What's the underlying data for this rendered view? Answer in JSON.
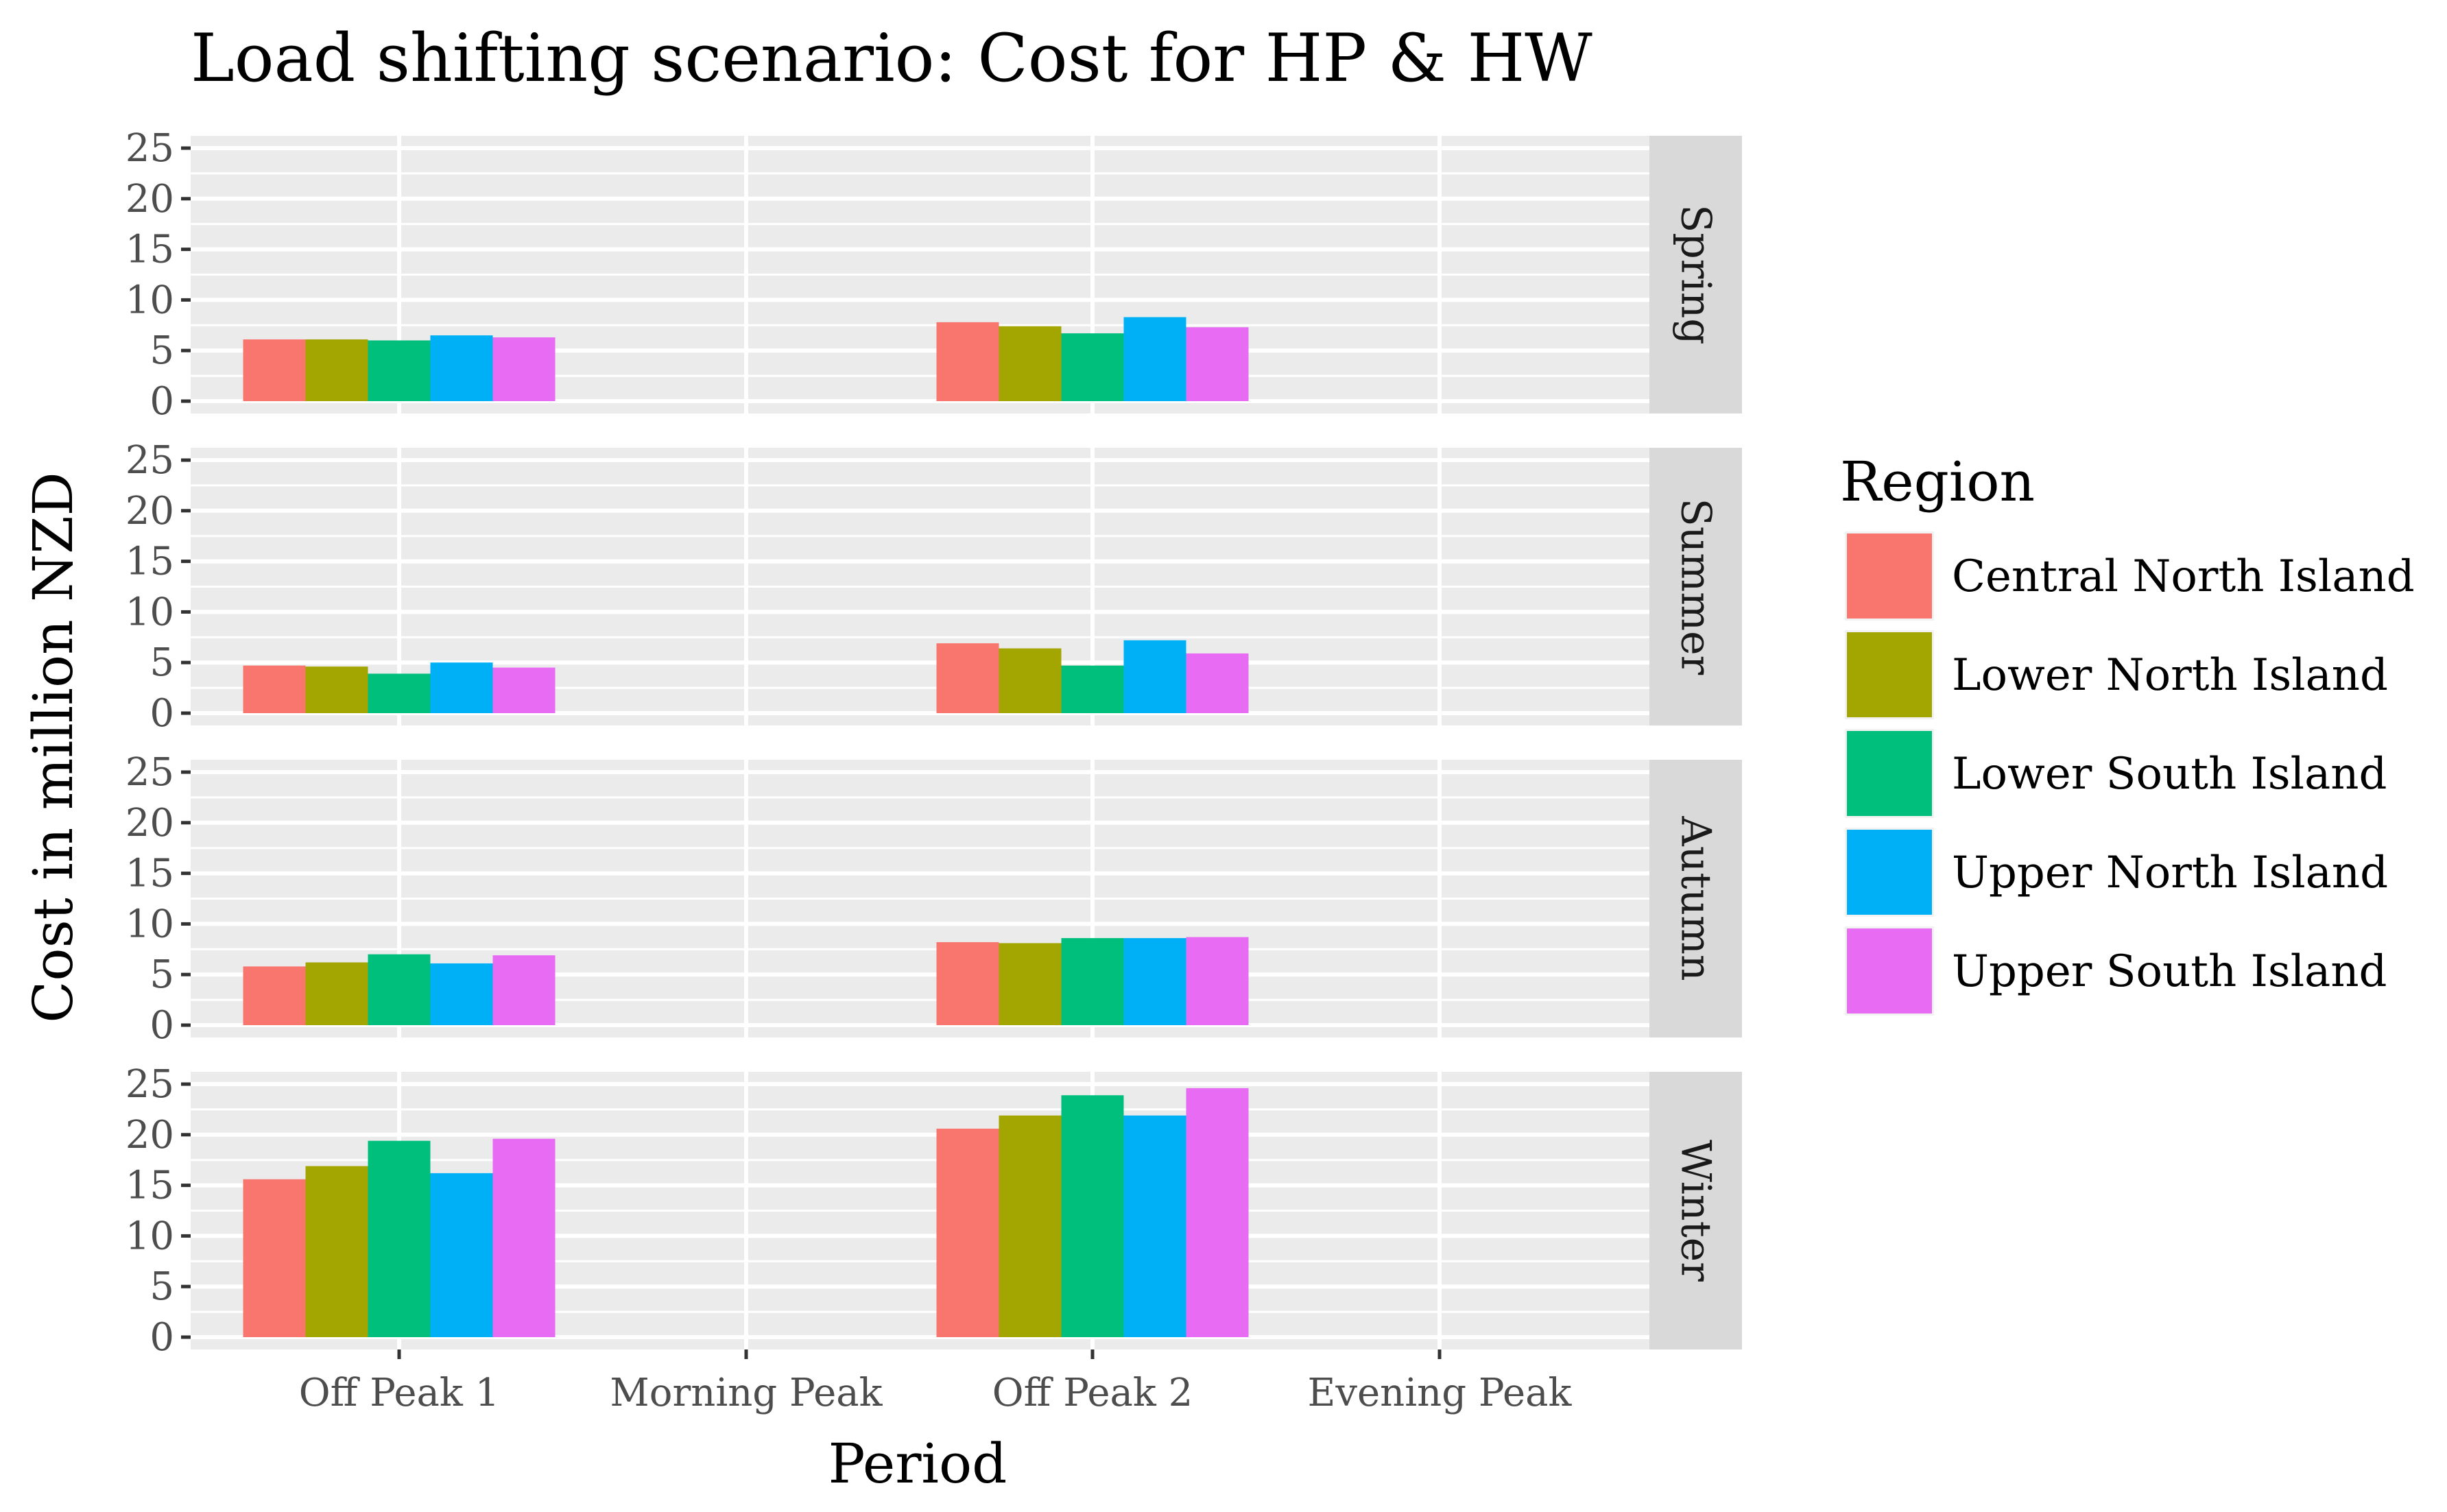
{
  "chart_data": {
    "type": "bar",
    "title": "Load shifting scenario: Cost for HP & HW",
    "xlabel": "Period",
    "ylabel": "Cost in million NZD",
    "categories": [
      "Off Peak 1",
      "Morning Peak",
      "Off Peak 2",
      "Evening Peak"
    ],
    "ylim": [
      0,
      25
    ],
    "yticks": [
      "0",
      "5",
      "10",
      "15",
      "20",
      "25"
    ],
    "grid": true,
    "legend": {
      "title": "Region",
      "placement": "right",
      "entries": [
        "Central North Island",
        "Lower North Island",
        "Lower South Island",
        "Upper North Island",
        "Upper South Island"
      ],
      "colors": [
        "#F8766D",
        "#A3A500",
        "#00BF7D",
        "#00B0F6",
        "#E76BF3"
      ]
    },
    "facets": [
      {
        "name": "Spring",
        "series": [
          {
            "name": "Central North Island",
            "values": [
              6.1,
              null,
              7.8,
              null
            ]
          },
          {
            "name": "Lower North Island",
            "values": [
              6.1,
              null,
              7.4,
              null
            ]
          },
          {
            "name": "Lower South Island",
            "values": [
              6.0,
              null,
              6.7,
              null
            ]
          },
          {
            "name": "Upper North Island",
            "values": [
              6.5,
              null,
              8.3,
              null
            ]
          },
          {
            "name": "Upper South Island",
            "values": [
              6.3,
              null,
              7.3,
              null
            ]
          }
        ]
      },
      {
        "name": "Summer",
        "series": [
          {
            "name": "Central North Island",
            "values": [
              4.7,
              null,
              6.9,
              null
            ]
          },
          {
            "name": "Lower North Island",
            "values": [
              4.6,
              null,
              6.4,
              null
            ]
          },
          {
            "name": "Lower South Island",
            "values": [
              3.9,
              null,
              4.7,
              null
            ]
          },
          {
            "name": "Upper North Island",
            "values": [
              5.0,
              null,
              7.2,
              null
            ]
          },
          {
            "name": "Upper South Island",
            "values": [
              4.5,
              null,
              5.9,
              null
            ]
          }
        ]
      },
      {
        "name": "Autumn",
        "series": [
          {
            "name": "Central North Island",
            "values": [
              5.8,
              null,
              8.2,
              null
            ]
          },
          {
            "name": "Lower North Island",
            "values": [
              6.2,
              null,
              8.1,
              null
            ]
          },
          {
            "name": "Lower South Island",
            "values": [
              7.0,
              null,
              8.6,
              null
            ]
          },
          {
            "name": "Upper North Island",
            "values": [
              6.1,
              null,
              8.6,
              null
            ]
          },
          {
            "name": "Upper South Island",
            "values": [
              6.9,
              null,
              8.7,
              null
            ]
          }
        ]
      },
      {
        "name": "Winter",
        "series": [
          {
            "name": "Central North Island",
            "values": [
              15.6,
              null,
              20.6,
              null
            ]
          },
          {
            "name": "Lower North Island",
            "values": [
              16.9,
              null,
              21.9,
              null
            ]
          },
          {
            "name": "Lower South Island",
            "values": [
              19.4,
              null,
              23.9,
              null
            ]
          },
          {
            "name": "Upper North Island",
            "values": [
              16.2,
              null,
              21.9,
              null
            ]
          },
          {
            "name": "Upper South Island",
            "values": [
              19.6,
              null,
              24.6,
              null
            ]
          }
        ]
      }
    ]
  }
}
